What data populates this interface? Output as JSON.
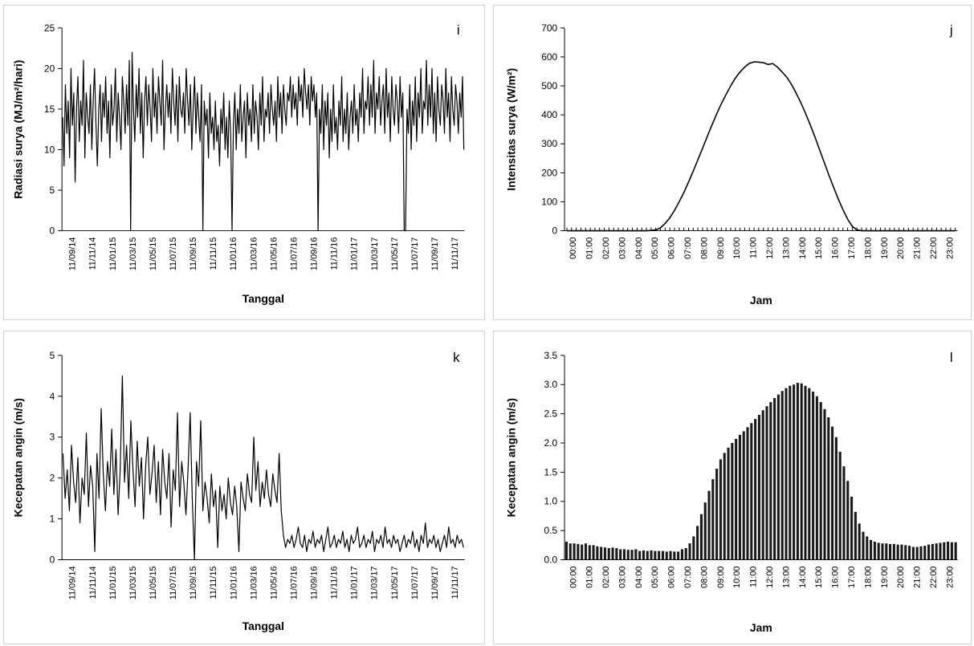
{
  "chart_data": [
    {
      "id": "i",
      "type": "line",
      "panel_label": "i",
      "xlabel": "Tanggal",
      "ylabel": "Radiasi surya (MJ/m²/hari)",
      "ylim": [
        0,
        25
      ],
      "y_ticks": [
        "0",
        "5",
        "10",
        "15",
        "20",
        "25"
      ],
      "x_ticks": [
        "11/09/14",
        "11/11/14",
        "11/01/15",
        "11/03/15",
        "11/05/15",
        "11/07/15",
        "11/09/15",
        "11/11/15",
        "11/01/16",
        "11/03/16",
        "11/05/16",
        "11/07/16",
        "11/09/16",
        "11/11/16",
        "11/01/17",
        "11/03/17",
        "11/05/17",
        "11/07/17",
        "11/09/17",
        "11/11/17"
      ],
      "series": [
        {
          "values": [
            14,
            8,
            18,
            12,
            16,
            9,
            20,
            13,
            17,
            6,
            15,
            19,
            11,
            16,
            13,
            21,
            9,
            17,
            14,
            12,
            18,
            10,
            16,
            20,
            13,
            8,
            15,
            18,
            11,
            17,
            14,
            19,
            12,
            16,
            9,
            18,
            13,
            15,
            20,
            11,
            17,
            14,
            10,
            19,
            16,
            12,
            18,
            13,
            21,
            0,
            22,
            15,
            11,
            18,
            14,
            20,
            12,
            17,
            9,
            16,
            19,
            13,
            18,
            15,
            11,
            20,
            14,
            17,
            12,
            19,
            16,
            13,
            21,
            10,
            15,
            18,
            14,
            17,
            12,
            20,
            16,
            13,
            18,
            11,
            19,
            15,
            14,
            17,
            12,
            20,
            16,
            13,
            18,
            10,
            15,
            19,
            12,
            17,
            14,
            11,
            18,
            0,
            16,
            13,
            15,
            9,
            17,
            12,
            14,
            10,
            16,
            11,
            13,
            8,
            15,
            12,
            17,
            10,
            14,
            9,
            16,
            12,
            0,
            13,
            17,
            10,
            15,
            12,
            18,
            11,
            14,
            16,
            9,
            17,
            13,
            15,
            11,
            18,
            12,
            16,
            14,
            10,
            17,
            13,
            19,
            11,
            15,
            14,
            17,
            12,
            18,
            15,
            13,
            16,
            11,
            19,
            14,
            17,
            12,
            18,
            15,
            13,
            17,
            16,
            19,
            14,
            18,
            15,
            17,
            13,
            19,
            16,
            18,
            14,
            20,
            17,
            15,
            18,
            13,
            19,
            16,
            18,
            14,
            17,
            0,
            15,
            12,
            18,
            10,
            16,
            13,
            17,
            9,
            15,
            11,
            18,
            12,
            14,
            10,
            16,
            13,
            19,
            11,
            15,
            12,
            17,
            10,
            14,
            16,
            12,
            18,
            13,
            15,
            11,
            17,
            14,
            20,
            12,
            16,
            15,
            19,
            13,
            18,
            14,
            21,
            12,
            17,
            15,
            19,
            13,
            16,
            18,
            12,
            20,
            14,
            17,
            11,
            19,
            15,
            13,
            18,
            16,
            12,
            19,
            14,
            17,
            0,
            0,
            15,
            12,
            18,
            10,
            16,
            13,
            19,
            11,
            17,
            14,
            20,
            12,
            16,
            15,
            21,
            13,
            18,
            14,
            20,
            12,
            17,
            11,
            19,
            15,
            13,
            18,
            16,
            12,
            20,
            14,
            17,
            11,
            19,
            15,
            13,
            18,
            16,
            12,
            17,
            14,
            19,
            10
          ]
        }
      ]
    },
    {
      "id": "j",
      "type": "line",
      "panel_label": "j",
      "xlabel": "Jam",
      "ylabel": "Intensitas surya (W/m²)",
      "ylim": [
        0,
        700
      ],
      "y_ticks": [
        "0",
        "100",
        "200",
        "300",
        "400",
        "500",
        "600",
        "700"
      ],
      "x_ticks": [
        "00:00",
        "01:00",
        "02:00",
        "03:00",
        "04:00",
        "05:00",
        "06:00",
        "07:00",
        "08:00",
        "09:00",
        "10:00",
        "11:00",
        "12:00",
        "13:00",
        "14:00",
        "15:00",
        "16:00",
        "17:00",
        "18:00",
        "19:00",
        "20:00",
        "21:00",
        "22:00",
        "23:00"
      ],
      "x_minutes_step": 20,
      "series": [
        {
          "values": [
            0,
            0,
            0,
            0,
            0,
            0,
            0,
            0,
            0,
            0,
            0,
            0,
            0,
            0,
            0,
            0,
            0,
            0,
            1,
            3,
            10,
            25,
            45,
            70,
            100,
            132,
            168,
            206,
            245,
            285,
            325,
            365,
            403,
            438,
            470,
            500,
            527,
            548,
            565,
            578,
            583,
            582,
            580,
            574,
            577,
            565,
            548,
            530,
            505,
            475,
            442,
            406,
            366,
            324,
            280,
            236,
            192,
            150,
            110,
            73,
            40,
            15,
            3,
            0,
            0,
            0,
            0,
            0,
            0,
            0,
            0,
            0,
            0,
            0,
            0,
            0,
            0,
            0,
            0,
            0,
            0,
            0,
            0,
            0
          ]
        }
      ]
    },
    {
      "id": "k",
      "type": "line",
      "panel_label": "k",
      "xlabel": "Tanggal",
      "ylabel": "Kecepatan angin (m/s)",
      "ylim": [
        0,
        5
      ],
      "y_ticks": [
        "0",
        "1",
        "2",
        "3",
        "4",
        "5"
      ],
      "x_ticks": [
        "11/09/14",
        "11/11/14",
        "11/01/15",
        "11/03/15",
        "11/05/15",
        "11/07/15",
        "11/09/15",
        "11/11/15",
        "11/01/16",
        "11/03/16",
        "11/05/16",
        "11/07/16",
        "11/09/16",
        "11/11/16",
        "11/01/17",
        "11/03/17",
        "11/05/17",
        "11/07/17",
        "11/09/17",
        "11/11/17"
      ],
      "series": [
        {
          "values": [
            2.6,
            1.5,
            2.2,
            1.2,
            2.8,
            1.9,
            1.4,
            2.5,
            0.9,
            2.0,
            1.6,
            3.1,
            1.3,
            2.3,
            1.8,
            0.2,
            2.6,
            1.5,
            3.7,
            2.1,
            1.2,
            2.4,
            1.8,
            3.2,
            1.6,
            2.7,
            1.1,
            2.2,
            4.5,
            1.9,
            2.8,
            1.5,
            3.4,
            2.2,
            1.3,
            2.9,
            1.8,
            2.5,
            1.0,
            2.3,
            3.0,
            1.6,
            2.1,
            2.8,
            1.4,
            2.4,
            1.1,
            2.7,
            1.9,
            1.5,
            2.6,
            0.8,
            2.2,
            1.7,
            3.6,
            1.3,
            2.4,
            1.9,
            1.1,
            2.2,
            3.6,
            1.5,
            0.0,
            2.4,
            1.8,
            3.4,
            1.2,
            1.9,
            1.5,
            0.9,
            2.1,
            1.3,
            1.7,
            0.3,
            1.8,
            1.2,
            1.6,
            1.0,
            2.0,
            1.4,
            1.1,
            1.8,
            1.3,
            0.2,
            1.9,
            1.5,
            1.2,
            2.1,
            1.6,
            1.4,
            3.0,
            1.7,
            2.4,
            1.3,
            1.9,
            1.5,
            2.2,
            1.6,
            1.3,
            2.1,
            1.7,
            1.4,
            2.6,
            1.2,
            0.6,
            0.3,
            0.5,
            0.4,
            0.6,
            0.3,
            0.5,
            0.8,
            0.4,
            0.3,
            0.6,
            0.2,
            0.5,
            0.4,
            0.7,
            0.3,
            0.5,
            0.4,
            0.6,
            0.2,
            0.5,
            0.8,
            0.3,
            0.4,
            0.6,
            0.3,
            0.5,
            0.4,
            0.7,
            0.3,
            0.5,
            0.2,
            0.6,
            0.4,
            0.5,
            0.8,
            0.3,
            0.4,
            0.6,
            0.3,
            0.5,
            0.4,
            0.7,
            0.2,
            0.5,
            0.4,
            0.6,
            0.3,
            0.8,
            0.4,
            0.5,
            0.3,
            0.6,
            0.4,
            0.5,
            0.2,
            0.4,
            0.6,
            0.3,
            0.5,
            0.4,
            0.7,
            0.3,
            0.5,
            0.2,
            0.6,
            0.4,
            0.9,
            0.3,
            0.5,
            0.4,
            0.6,
            0.3,
            0.5,
            0.2,
            0.4,
            0.6,
            0.3,
            0.8,
            0.4,
            0.5,
            0.3,
            0.6,
            0.4,
            0.5,
            0.3
          ]
        }
      ]
    },
    {
      "id": "l",
      "type": "bar",
      "panel_label": "l",
      "xlabel": "Jam",
      "ylabel": "Kecepatan angin (m/s)",
      "ylim": [
        0,
        3.5
      ],
      "y_ticks": [
        "0.0",
        "0.5",
        "1.0",
        "1.5",
        "2.0",
        "2.5",
        "3.0",
        "3.5"
      ],
      "x_ticks": [
        "00:00",
        "01:00",
        "02:00",
        "03:00",
        "04:00",
        "05:00",
        "06:00",
        "07:00",
        "08:00",
        "09:00",
        "10:00",
        "11:00",
        "12:00",
        "13:00",
        "14:00",
        "15:00",
        "16:00",
        "17:00",
        "18:00",
        "19:00",
        "20:00",
        "21:00",
        "22:00",
        "23:00"
      ],
      "x_minutes_step": 20,
      "series": [
        {
          "values": [
            0.31,
            0.28,
            0.28,
            0.27,
            0.26,
            0.28,
            0.25,
            0.25,
            0.23,
            0.22,
            0.21,
            0.2,
            0.21,
            0.2,
            0.18,
            0.18,
            0.17,
            0.17,
            0.18,
            0.15,
            0.16,
            0.15,
            0.16,
            0.15,
            0.15,
            0.15,
            0.14,
            0.15,
            0.14,
            0.14,
            0.18,
            0.2,
            0.28,
            0.4,
            0.58,
            0.78,
            0.98,
            1.18,
            1.38,
            1.56,
            1.72,
            1.83,
            1.92,
            2.0,
            2.07,
            2.14,
            2.2,
            2.27,
            2.34,
            2.41,
            2.48,
            2.56,
            2.63,
            2.7,
            2.77,
            2.83,
            2.89,
            2.94,
            2.98,
            3.0,
            3.03,
            3.02,
            2.98,
            2.94,
            2.88,
            2.8,
            2.7,
            2.58,
            2.44,
            2.28,
            2.1,
            1.85,
            1.6,
            1.35,
            1.08,
            0.82,
            0.62,
            0.48,
            0.4,
            0.34,
            0.31,
            0.29,
            0.28,
            0.28,
            0.27,
            0.27,
            0.26,
            0.26,
            0.25,
            0.24,
            0.22,
            0.22,
            0.23,
            0.24,
            0.26,
            0.27,
            0.28,
            0.29,
            0.3,
            0.31,
            0.3,
            0.3
          ]
        }
      ]
    }
  ]
}
